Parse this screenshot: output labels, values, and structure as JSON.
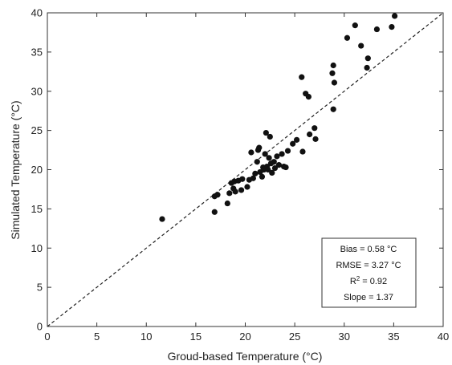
{
  "chart_data": {
    "type": "scatter",
    "xlabel": "Groud-based Temperature (°C)",
    "ylabel": "Simulated Temperature (°C)",
    "xlim": [
      0,
      40
    ],
    "ylim": [
      0,
      40
    ],
    "xticks": [
      0,
      5,
      10,
      15,
      20,
      25,
      30,
      35,
      40
    ],
    "yticks": [
      0,
      5,
      10,
      15,
      20,
      25,
      30,
      35,
      40
    ],
    "grid": false,
    "reference_line": {
      "type": "1:1",
      "style": "dashed"
    },
    "stats": {
      "bias": "Bias = 0.58 °C",
      "rmse": "RMSE = 3.27 °C",
      "r2_prefix": "R",
      "r2_sup": "2",
      "r2_suffix": " = 0.92",
      "slope": "Slope = 1.37"
    },
    "points": [
      [
        11.6,
        13.7
      ],
      [
        16.9,
        14.6
      ],
      [
        16.9,
        16.6
      ],
      [
        17.2,
        16.8
      ],
      [
        18.2,
        15.7
      ],
      [
        18.4,
        17.0
      ],
      [
        18.6,
        18.3
      ],
      [
        18.8,
        17.6
      ],
      [
        18.9,
        18.5
      ],
      [
        19.0,
        17.2
      ],
      [
        19.3,
        18.6
      ],
      [
        19.6,
        17.4
      ],
      [
        19.7,
        18.8
      ],
      [
        20.2,
        17.8
      ],
      [
        20.4,
        18.7
      ],
      [
        20.6,
        22.2
      ],
      [
        20.8,
        18.9
      ],
      [
        21.0,
        19.5
      ],
      [
        21.2,
        21.0
      ],
      [
        21.3,
        22.5
      ],
      [
        21.4,
        22.8
      ],
      [
        21.5,
        19.7
      ],
      [
        21.7,
        19.1
      ],
      [
        21.8,
        20.3
      ],
      [
        21.9,
        20.0
      ],
      [
        22.0,
        22.0
      ],
      [
        22.1,
        24.7
      ],
      [
        22.2,
        20.4
      ],
      [
        22.3,
        20.0
      ],
      [
        22.4,
        21.5
      ],
      [
        22.5,
        24.2
      ],
      [
        22.6,
        20.8
      ],
      [
        22.7,
        19.6
      ],
      [
        22.9,
        21.0
      ],
      [
        23.0,
        20.2
      ],
      [
        23.2,
        21.7
      ],
      [
        23.4,
        20.6
      ],
      [
        23.7,
        22.0
      ],
      [
        23.9,
        20.4
      ],
      [
        24.1,
        20.3
      ],
      [
        24.3,
        22.4
      ],
      [
        24.8,
        23.3
      ],
      [
        25.2,
        23.8
      ],
      [
        25.7,
        31.8
      ],
      [
        25.8,
        22.3
      ],
      [
        26.1,
        29.7
      ],
      [
        26.4,
        29.3
      ],
      [
        26.5,
        24.5
      ],
      [
        27.0,
        25.3
      ],
      [
        27.1,
        23.9
      ],
      [
        28.8,
        32.3
      ],
      [
        28.9,
        33.3
      ],
      [
        28.9,
        27.7
      ],
      [
        29.0,
        31.1
      ],
      [
        30.3,
        36.8
      ],
      [
        31.1,
        38.4
      ],
      [
        31.7,
        35.8
      ],
      [
        32.3,
        33.0
      ],
      [
        32.4,
        34.2
      ],
      [
        33.3,
        37.9
      ],
      [
        34.8,
        38.2
      ],
      [
        35.1,
        39.6
      ]
    ]
  }
}
